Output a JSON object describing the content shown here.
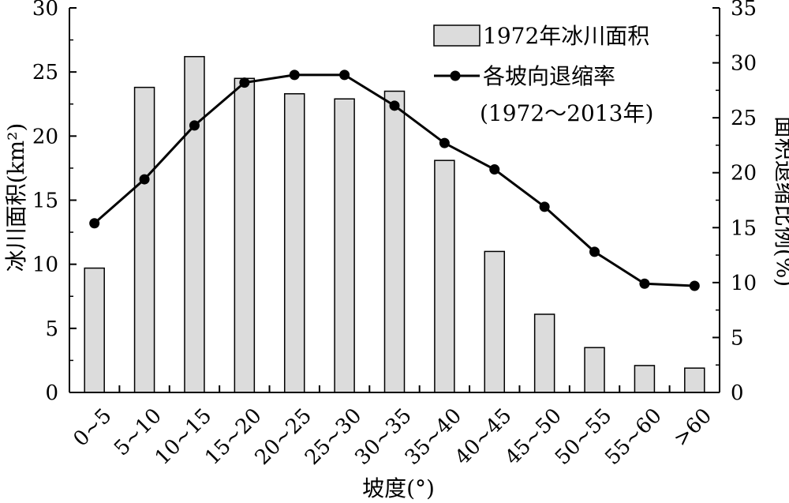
{
  "chart_data": {
    "type": "bar+line",
    "categories": [
      "0~5",
      "5~10",
      "10~15",
      "15~20",
      "20~25",
      "25~30",
      "30~35",
      "35~40",
      "40~45",
      "45~50",
      "50~55",
      "55~60",
      ">60"
    ],
    "series": [
      {
        "name": "1972年冰川面积",
        "type": "bar",
        "axis": "left",
        "values": [
          9.7,
          23.8,
          26.2,
          24.5,
          23.3,
          22.9,
          23.5,
          18.1,
          11.0,
          6.1,
          3.5,
          2.1,
          1.9
        ]
      },
      {
        "name": "各坡向退缩率",
        "type": "line",
        "axis": "right",
        "values": [
          15.4,
          19.4,
          24.3,
          28.2,
          28.9,
          28.9,
          26.1,
          22.7,
          20.3,
          16.9,
          12.8,
          9.9,
          9.7
        ]
      }
    ],
    "legend_note": "(1972～2013年)",
    "xlabel": "坡度(°)",
    "ylabel_left": "冰川面积(km²)",
    "ylabel_right": "面积退缩比例(%)",
    "ylim_left": [
      0,
      30
    ],
    "ylim_right": [
      0,
      35
    ],
    "yticks_left": [
      "0",
      "5",
      "10",
      "15",
      "20",
      "25",
      "30"
    ],
    "yticks_right": [
      "0",
      "5",
      "10",
      "15",
      "20",
      "25",
      "30",
      "35"
    ],
    "legend_position": "top-right",
    "grid": false,
    "colors": {
      "bar_fill": "#dcdcdc",
      "bar_stroke": "#000000",
      "line": "#000000",
      "marker": "#000000"
    }
  }
}
